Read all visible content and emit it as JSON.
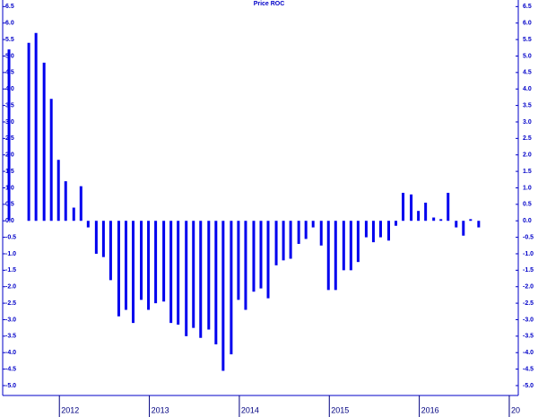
{
  "chart_data": {
    "type": "bar",
    "title": "Price ROC",
    "color": "#0000ee",
    "x": [
      2011.44,
      2011.66,
      2011.74,
      2011.83,
      2011.91,
      2011.99,
      2012.07,
      2012.16,
      2012.24,
      2012.32,
      2012.41,
      2012.49,
      2012.57,
      2012.66,
      2012.74,
      2012.82,
      2012.91,
      2012.99,
      2013.07,
      2013.16,
      2013.24,
      2013.32,
      2013.41,
      2013.49,
      2013.57,
      2013.66,
      2013.74,
      2013.82,
      2013.91,
      2013.99,
      2014.07,
      2014.16,
      2014.24,
      2014.32,
      2014.41,
      2014.49,
      2014.57,
      2014.66,
      2014.74,
      2014.82,
      2014.91,
      2014.99,
      2015.07,
      2015.16,
      2015.24,
      2015.32,
      2015.41,
      2015.49,
      2015.57,
      2015.66,
      2015.74,
      2015.82,
      2015.91,
      2015.99,
      2016.07,
      2016.16,
      2016.24,
      2016.32,
      2016.41,
      2016.49,
      2016.57,
      2016.66
    ],
    "values": [
      5.2,
      5.4,
      5.7,
      4.8,
      3.7,
      1.85,
      1.2,
      0.4,
      1.05,
      -0.2,
      -1.0,
      -1.1,
      -1.8,
      -2.9,
      -2.7,
      -3.1,
      -2.4,
      -2.7,
      -2.5,
      -2.45,
      -3.1,
      -3.15,
      -3.5,
      -3.25,
      -3.55,
      -3.3,
      -3.75,
      -4.55,
      -4.05,
      -2.4,
      -2.7,
      -2.15,
      -2.05,
      -2.35,
      -1.35,
      -1.2,
      -1.15,
      -0.7,
      -0.55,
      -0.2,
      -0.75,
      -2.1,
      -2.1,
      -1.5,
      -1.5,
      -1.25,
      -0.5,
      -0.65,
      -0.5,
      -0.6,
      -0.15,
      0.85,
      0.8,
      0.3,
      0.55,
      0.1,
      0.05,
      0.85,
      -0.2,
      -0.45,
      0.05,
      -0.2
    ],
    "xlim": [
      2011.37,
      2017.1
    ],
    "xticks": [
      2012,
      2013,
      2014,
      2015,
      2016,
      {
        "value": 2017,
        "label": "20"
      }
    ],
    "ylim": [
      -5.3,
      6.7
    ],
    "yticks": [
      {
        "value": -5,
        "label": "-5.0"
      },
      -4.5,
      {
        "value": -4,
        "label": "-4.0"
      },
      -3.5,
      {
        "value": -3,
        "label": "-3.0"
      },
      -2.5,
      {
        "value": -2,
        "label": "-2.0"
      },
      -1.5,
      {
        "value": -1,
        "label": "-1.0"
      },
      -0.5,
      {
        "value": 0,
        "label": "0.0"
      },
      0.5,
      {
        "value": 1,
        "label": "1.0"
      },
      1.5,
      {
        "value": 2,
        "label": "2.0"
      },
      2.5,
      {
        "value": 3,
        "label": "3.0"
      },
      3.5,
      {
        "value": 4,
        "label": "4.0"
      },
      4.5,
      {
        "value": 5,
        "label": "5.0"
      },
      5.5,
      {
        "value": 6,
        "label": "6.0"
      },
      6.5
    ]
  }
}
